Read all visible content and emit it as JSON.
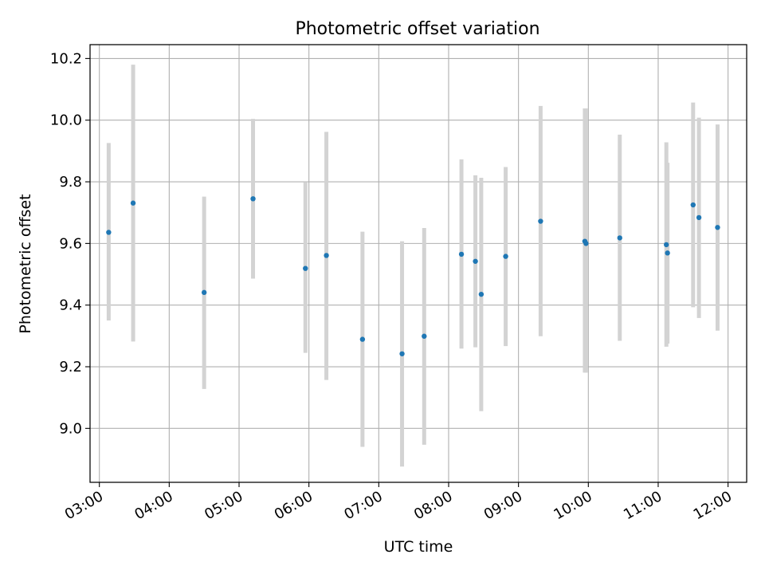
{
  "chart_data": {
    "type": "scatter",
    "title": "Photometric offset variation",
    "xlabel": "UTC time",
    "ylabel": "Photometric offset",
    "xlim": [
      "02:52",
      "12:16"
    ],
    "ylim": [
      8.825,
      10.245
    ],
    "x_ticks": [
      "03:00",
      "04:00",
      "05:00",
      "06:00",
      "07:00",
      "08:00",
      "09:00",
      "10:00",
      "11:00",
      "12:00"
    ],
    "y_ticks": [
      "9.0",
      "9.2",
      "9.4",
      "9.6",
      "9.8",
      "10.0",
      "10.2"
    ],
    "grid": true,
    "colors": {
      "point": "#1f77b4",
      "errorbar": "#d3d3d3",
      "grid": "#b0b0b0"
    },
    "points": [
      {
        "x": "03:08",
        "y": 9.636,
        "lo": 9.35,
        "hi": 9.926
      },
      {
        "x": "03:29",
        "y": 9.731,
        "lo": 9.282,
        "hi": 10.18
      },
      {
        "x": "04:30",
        "y": 9.441,
        "lo": 9.128,
        "hi": 9.752
      },
      {
        "x": "05:12",
        "y": 9.745,
        "lo": 9.486,
        "hi": 10.004
      },
      {
        "x": "05:57",
        "y": 9.519,
        "lo": 9.245,
        "hi": 9.798
      },
      {
        "x": "06:15",
        "y": 9.561,
        "lo": 9.157,
        "hi": 9.962
      },
      {
        "x": "06:46",
        "y": 9.289,
        "lo": 8.94,
        "hi": 9.638
      },
      {
        "x": "07:20",
        "y": 9.242,
        "lo": 8.876,
        "hi": 9.607
      },
      {
        "x": "07:39",
        "y": 9.299,
        "lo": 8.947,
        "hi": 9.65
      },
      {
        "x": "08:11",
        "y": 9.565,
        "lo": 9.259,
        "hi": 9.873
      },
      {
        "x": "08:23",
        "y": 9.542,
        "lo": 9.263,
        "hi": 9.821
      },
      {
        "x": "08:28",
        "y": 9.435,
        "lo": 9.056,
        "hi": 9.813
      },
      {
        "x": "08:49",
        "y": 9.558,
        "lo": 9.267,
        "hi": 9.848
      },
      {
        "x": "09:19",
        "y": 9.672,
        "lo": 9.299,
        "hi": 10.046
      },
      {
        "x": "09:57",
        "y": 9.607,
        "lo": 9.181,
        "hi": 10.038
      },
      {
        "x": "09:58",
        "y": 9.6,
        "lo": 9.181,
        "hi": 10.038
      },
      {
        "x": "10:27",
        "y": 9.618,
        "lo": 9.284,
        "hi": 9.953
      },
      {
        "x": "11:07",
        "y": 9.596,
        "lo": 9.265,
        "hi": 9.928
      },
      {
        "x": "11:08",
        "y": 9.569,
        "lo": 9.275,
        "hi": 9.862
      },
      {
        "x": "11:30",
        "y": 9.725,
        "lo": 9.393,
        "hi": 10.057
      },
      {
        "x": "11:35",
        "y": 9.684,
        "lo": 9.358,
        "hi": 10.008
      },
      {
        "x": "11:51",
        "y": 9.652,
        "lo": 9.317,
        "hi": 9.986
      }
    ]
  }
}
